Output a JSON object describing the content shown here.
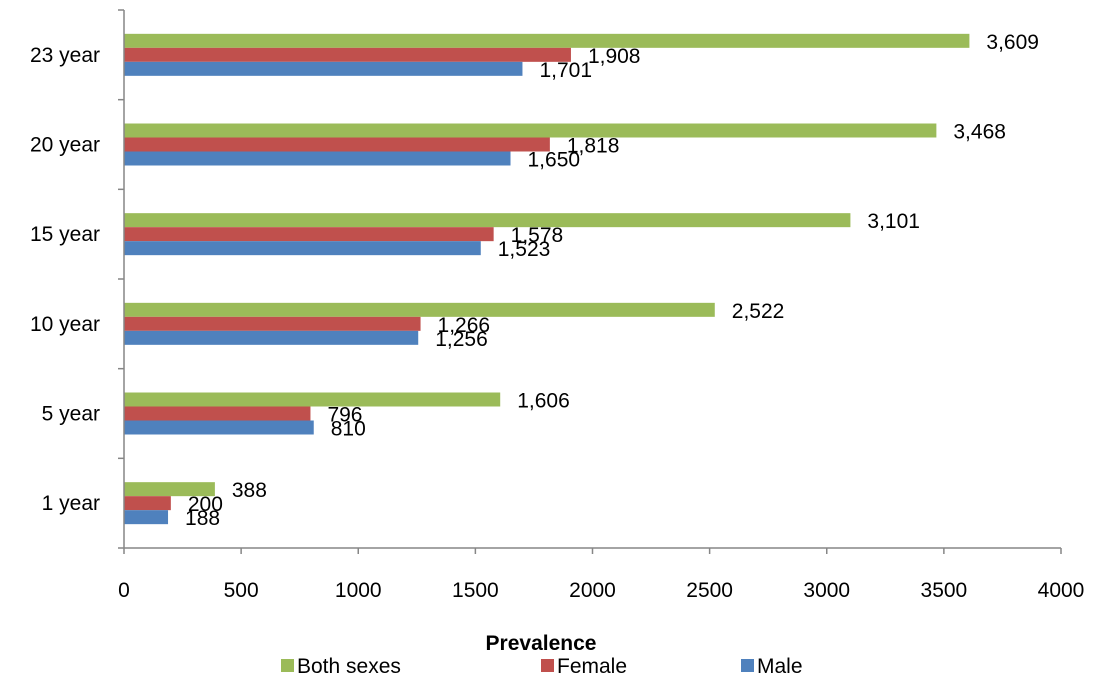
{
  "chart_data": {
    "type": "bar",
    "orientation": "horizontal",
    "categories": [
      "1 year",
      "5 year",
      "10 year",
      "15 year",
      "20 year",
      "23 year"
    ],
    "series": [
      {
        "name": "Both sexes",
        "color": "#9BBB59",
        "values": [
          388,
          1606,
          2522,
          3101,
          3468,
          3609
        ],
        "labels": [
          "388",
          "1,606",
          "2,522",
          "3,101",
          "3,468",
          "3,609"
        ]
      },
      {
        "name": "Female",
        "color": "#C0504D",
        "values": [
          200,
          796,
          1266,
          1578,
          1818,
          1908
        ],
        "labels": [
          "200",
          "796",
          "1,266",
          "1,578",
          "1,818",
          "1,908"
        ]
      },
      {
        "name": "Male",
        "color": "#4F81BD",
        "values": [
          188,
          810,
          1256,
          1523,
          1650,
          1701
        ],
        "labels": [
          "188",
          "810",
          "1,256",
          "1,523",
          "1,650",
          "1,701"
        ]
      }
    ],
    "xlim": [
      0,
      4000
    ],
    "xticks": [
      0,
      500,
      1000,
      1500,
      2000,
      2500,
      3000,
      3500,
      4000
    ],
    "xlabel": "Prevalence",
    "ylabel": "",
    "title": "",
    "grid": false,
    "legend": "bottom"
  }
}
